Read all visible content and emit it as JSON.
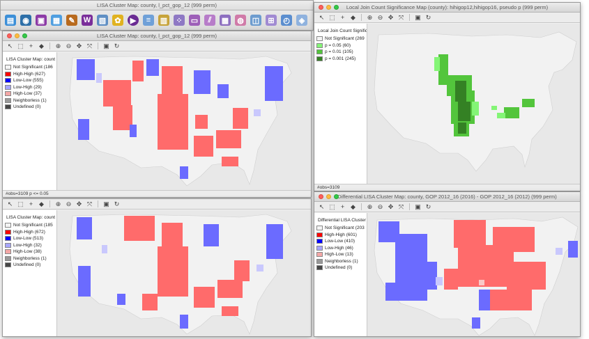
{
  "app": {
    "main_title": "LISA Cluster Map: county, l_pct_gop_12 (999 perm)",
    "toolbar_icons": [
      "open-folder-icon",
      "database-icon",
      "save-icon",
      "table-icon",
      "tools-icon",
      "weights-icon",
      "map-icon",
      "cluster-icon",
      "play-icon",
      "legend-icon",
      "histogram-icon",
      "scatter-icon",
      "boxplot-icon",
      "parallel-icon",
      "matrix-icon",
      "bubble-icon",
      "3d-icon",
      "moran-icon",
      "time-icon",
      "lisa-icon"
    ]
  },
  "colors": {
    "not_significant": "#f4f4f4",
    "high_high": "#ff0000",
    "low_low": "#0000ff",
    "low_high": "#a7a6fd",
    "high_low": "#f4a7a6",
    "neighborless": "#999999",
    "undefined": "#464646",
    "p05": "#84f576",
    "p01": "#53c53c",
    "p001": "#348124"
  },
  "windows": {
    "w1": {
      "title": "LISA Cluster Map: county, l_pct_gop_12 (999 perm)",
      "legend_title": "LISA Cluster Map: count",
      "items": [
        {
          "label": "Not Significant (186",
          "color": "#f4f4f4"
        },
        {
          "label": "High-High (627)",
          "color": "#ff0000"
        },
        {
          "label": "Low-Low (555)",
          "color": "#0000ff"
        },
        {
          "label": "Low-High (29)",
          "color": "#a7a6fd"
        },
        {
          "label": "High-Low (37)",
          "color": "#f4a7a6"
        },
        {
          "label": "Neighborless (1)",
          "color": "#999999"
        },
        {
          "label": "Undefined (0)",
          "color": "#464646"
        }
      ],
      "status": "#obs=3109  p <= 0.05"
    },
    "w2": {
      "title": "Local Join Count Significance Map (county): hihigop12,hihigop16, pseudo p (999 perm)",
      "legend_title": "Local Join Count Signific",
      "items": [
        {
          "label": "Not Significant (269",
          "color": "#f4f4f4"
        },
        {
          "label": "p = 0.05 (60)",
          "color": "#84f576"
        },
        {
          "label": "p = 0.01 (105)",
          "color": "#53c53c"
        },
        {
          "label": "p = 0.001 (245)",
          "color": "#348124"
        }
      ],
      "status": "#obs=3109"
    },
    "w3": {
      "legend_title": "LISA Cluster Map: count",
      "items": [
        {
          "label": "Not Significant (185",
          "color": "#f4f4f4"
        },
        {
          "label": "High-High (672)",
          "color": "#ff0000"
        },
        {
          "label": "Low-Low (513)",
          "color": "#0000ff"
        },
        {
          "label": "Low-High (32)",
          "color": "#a7a6fd"
        },
        {
          "label": "High-Low (38)",
          "color": "#f4a7a6"
        },
        {
          "label": "Neighborless (1)",
          "color": "#999999"
        },
        {
          "label": "Undefined (0)",
          "color": "#464646"
        }
      ]
    },
    "w4": {
      "title": "Differential LISA Cluster Map: county, GOP 2012_16 (2016) - GOP 2012_16 (2012) (999 perm)",
      "legend_title": "Differential LISA Cluster",
      "items": [
        {
          "label": "Not Significant (203",
          "color": "#f4f4f4"
        },
        {
          "label": "High-High (601)",
          "color": "#ff0000"
        },
        {
          "label": "Low-Low (410)",
          "color": "#0000ff"
        },
        {
          "label": "Low-High (46)",
          "color": "#a7a6fd"
        },
        {
          "label": "High-Low (13)",
          "color": "#f4a7a6"
        },
        {
          "label": "Neighborless (1)",
          "color": "#999999"
        },
        {
          "label": "Undefined (0)",
          "color": "#464646"
        }
      ]
    }
  }
}
